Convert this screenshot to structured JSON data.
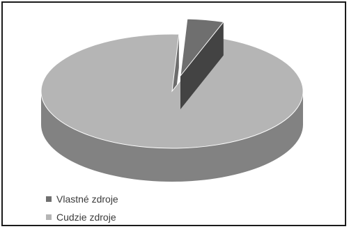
{
  "chart_data": {
    "type": "pie",
    "title": "",
    "style": "3d-exploded",
    "categories": [
      "Vlastné zdroje",
      "Cudzie zdroje"
    ],
    "values": [
      4.5,
      95.5
    ],
    "colors": [
      "#6f6f6f",
      "#b5b5b5"
    ],
    "legend": {
      "position": "bottom-left",
      "items": [
        {
          "label": "Vlastné zdroje",
          "color": "#6f6f6f"
        },
        {
          "label": "Cudzie zdroje",
          "color": "#b5b5b5"
        }
      ]
    }
  }
}
